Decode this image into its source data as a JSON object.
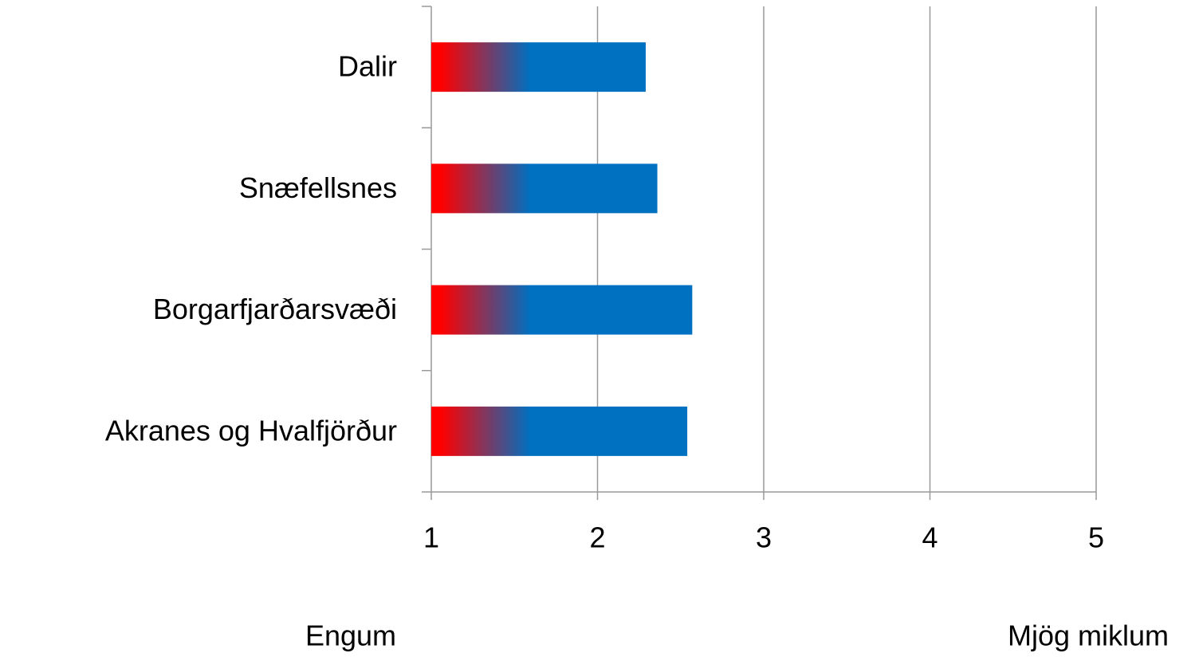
{
  "chart_data": {
    "type": "barh",
    "categories": [
      "Dalir",
      "Snæfellsnes",
      "Borgarfjarðarsvæði",
      "Akranes og Hvalfjörður"
    ],
    "values": [
      2.29,
      2.36,
      2.57,
      2.54
    ],
    "color": "#0070c0",
    "gradient_start_color": "#ff0000",
    "xlim": [
      1,
      5
    ],
    "xticks": [
      1,
      2,
      3,
      4,
      5
    ],
    "grid": true,
    "annotations": [
      "Engum",
      "Mjög miklum"
    ]
  }
}
